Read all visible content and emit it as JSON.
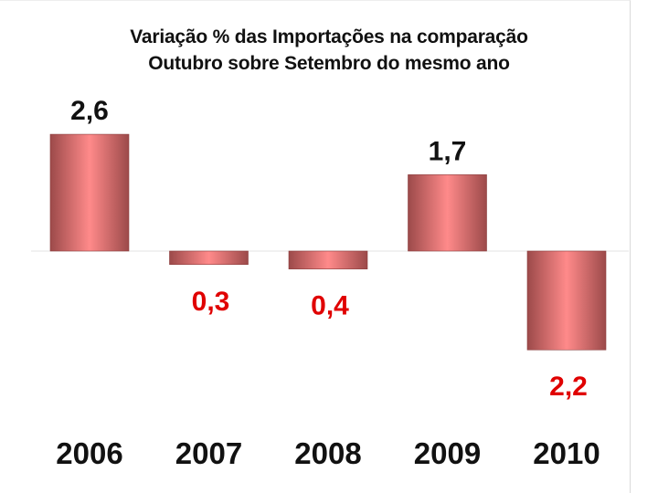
{
  "chart_data": {
    "type": "bar",
    "title": "Variação % das Importações na comparação",
    "subtitle": "Outubro sobre Setembro do mesmo ano",
    "categories": [
      "2006",
      "2007",
      "2008",
      "2009",
      "2010"
    ],
    "values": [
      2.6,
      -0.3,
      -0.4,
      1.7,
      -2.2
    ],
    "data_labels": [
      "2,6",
      "0,3",
      "0,4",
      "1,7",
      "2,2"
    ],
    "xlabel": "",
    "ylabel": "",
    "ylim": [
      -2.2,
      2.6
    ],
    "grid": false,
    "colors": {
      "bar_gradient_edge": "#9c4a4a",
      "bar_gradient_center": "#ff8a8a",
      "positive_label": "#111111",
      "negative_label": "#e00000",
      "baseline": "#e3e3e3"
    }
  }
}
